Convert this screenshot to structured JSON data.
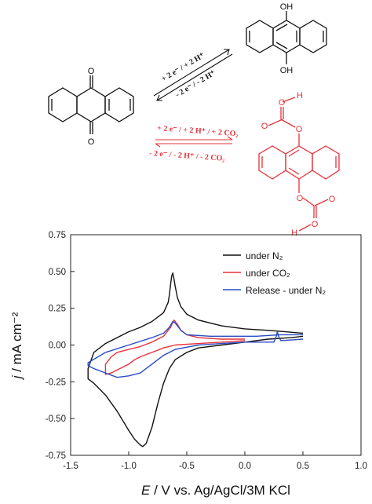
{
  "scheme": {
    "upper_arrow_top": "+ 2 e⁻ / + 2 H⁺",
    "upper_arrow_bottom": "- 2 e⁻ / - 2 H⁺",
    "lower_arrow_top": "+ 2 e⁻ / + 2 H⁺ / + 2 CO₂",
    "lower_arrow_bottom": "- 2 e⁻ / - 2 H⁺ / - 2 CO₂",
    "atoms": {
      "oh_top": "OH",
      "oh_bottom": "OH",
      "h_top": "H",
      "h_bottom": "H",
      "o": "O"
    },
    "colors": {
      "black": "#111111",
      "red": "#e8323a"
    }
  },
  "chart_data": {
    "type": "line",
    "xlabel_italic": "E",
    "xlabel_rest": " / V vs. Ag/AgCl/3M KCl",
    "ylabel_italic": "j",
    "ylabel_rest": " / mA cm⁻²",
    "xlim": [
      -1.5,
      1.0
    ],
    "ylim": [
      -0.75,
      0.75
    ],
    "xticks": [
      "-1.5",
      "-1.0",
      "-0.5",
      "0.0",
      "0.5",
      "1.0"
    ],
    "xtick_values": [
      -1.5,
      -1.0,
      -0.5,
      0.0,
      0.5,
      1.0
    ],
    "yticks": [
      "-0.75",
      "-0.50",
      "-0.25",
      "0.00",
      "0.25",
      "0.50",
      "0.75"
    ],
    "ytick_values": [
      -0.75,
      -0.5,
      -0.25,
      0.0,
      0.25,
      0.5,
      0.75
    ],
    "legend_position": "top-right",
    "series": [
      {
        "name": "under N₂",
        "color": "#111111",
        "x": [
          0.5,
          0.35,
          0.2,
          0.0,
          -0.2,
          -0.4,
          -0.5,
          -0.55,
          -0.58,
          -0.6,
          -0.61,
          -0.62,
          -0.63,
          -0.64,
          -0.65,
          -0.66,
          -0.7,
          -0.8,
          -0.9,
          -1.0,
          -1.1,
          -1.2,
          -1.3,
          -1.35,
          -1.35,
          -1.3,
          -1.2,
          -1.1,
          -1.0,
          -0.95,
          -0.9,
          -0.88,
          -0.85,
          -0.8,
          -0.75,
          -0.7,
          -0.65,
          -0.6,
          -0.5,
          -0.4,
          -0.2,
          0.0,
          0.2,
          0.4,
          0.5
        ],
        "y": [
          0.08,
          0.09,
          0.1,
          0.11,
          0.13,
          0.17,
          0.21,
          0.26,
          0.32,
          0.4,
          0.45,
          0.49,
          0.47,
          0.41,
          0.34,
          0.29,
          0.22,
          0.16,
          0.12,
          0.09,
          0.05,
          0.01,
          -0.05,
          -0.16,
          -0.23,
          -0.26,
          -0.34,
          -0.45,
          -0.58,
          -0.64,
          -0.68,
          -0.69,
          -0.67,
          -0.56,
          -0.4,
          -0.26,
          -0.16,
          -0.1,
          -0.05,
          -0.02,
          0.0,
          0.02,
          0.04,
          0.05,
          0.06
        ]
      },
      {
        "name": "under CO₂",
        "color": "#e8323a",
        "x": [
          0.0,
          -0.2,
          -0.4,
          -0.5,
          -0.55,
          -0.58,
          -0.61,
          -0.64,
          -0.7,
          -0.8,
          -0.9,
          -1.0,
          -1.1,
          -1.15,
          -1.2,
          -1.2,
          -1.15,
          -1.1,
          -1.05,
          -1.0,
          -0.95,
          -0.9,
          -0.8,
          -0.7,
          -0.6,
          -0.4,
          -0.2,
          0.0
        ],
        "y": [
          0.04,
          0.04,
          0.05,
          0.07,
          0.1,
          0.14,
          0.17,
          0.12,
          0.06,
          0.02,
          -0.01,
          -0.03,
          -0.05,
          -0.08,
          -0.13,
          -0.2,
          -0.19,
          -0.17,
          -0.15,
          -0.13,
          -0.1,
          -0.08,
          -0.05,
          -0.02,
          0.0,
          0.01,
          0.02,
          0.03
        ]
      },
      {
        "name": "Release - under N₂",
        "color": "#2b4cc4",
        "x": [
          0.5,
          0.3,
          0.1,
          -0.1,
          -0.3,
          -0.5,
          -0.55,
          -0.6,
          -0.62,
          -0.65,
          -0.7,
          -0.8,
          -1.0,
          -1.2,
          -1.35,
          -1.35,
          -1.3,
          -1.2,
          -1.1,
          -1.0,
          -0.9,
          -0.8,
          -0.7,
          -0.6,
          -0.4,
          -0.2,
          0.0,
          0.25,
          0.27,
          0.28,
          0.29,
          0.31,
          0.5
        ],
        "y": [
          0.07,
          0.07,
          0.06,
          0.06,
          0.06,
          0.07,
          0.1,
          0.15,
          0.16,
          0.12,
          0.08,
          0.05,
          0.0,
          -0.05,
          -0.12,
          -0.14,
          -0.16,
          -0.19,
          -0.22,
          -0.21,
          -0.19,
          -0.13,
          -0.07,
          -0.03,
          0.0,
          0.01,
          0.02,
          0.02,
          0.06,
          0.09,
          0.06,
          0.03,
          0.04
        ]
      }
    ]
  }
}
